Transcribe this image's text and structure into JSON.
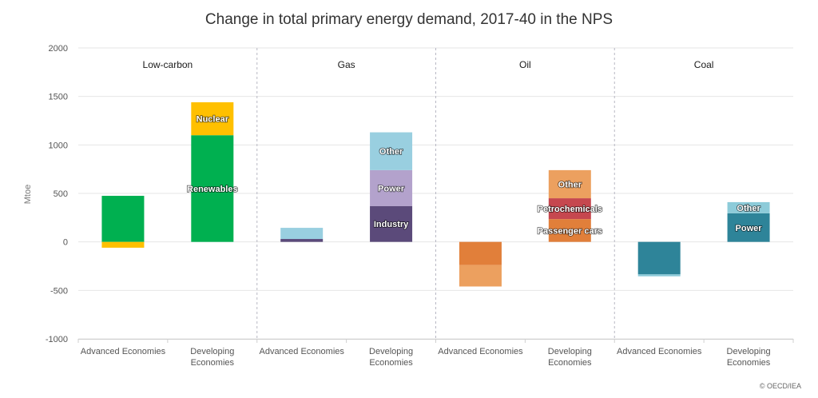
{
  "title": "Change in total primary energy demand, 2017-40 in the NPS",
  "credit": "© OECD/IEA",
  "chart_data": {
    "type": "bar",
    "stacked": true,
    "ylabel": "Mtoe",
    "ylim": [
      -1000,
      2000
    ],
    "yticks": [
      2000,
      1500,
      1000,
      500,
      0,
      -500,
      -1000
    ],
    "ytick_labels": [
      "2000",
      "1500",
      "1000",
      "500",
      "0",
      "-500",
      "-1000"
    ],
    "grid": true,
    "groups": [
      {
        "name": "Low-carbon",
        "bars": [
          {
            "category": "Advanced Economies",
            "segments": [
              {
                "label": "",
                "value": 475,
                "color": "#00b050"
              },
              {
                "label": "",
                "value": -60,
                "color": "#ffc000"
              }
            ]
          },
          {
            "category": "Developing Economies",
            "segments": [
              {
                "label": "Renewables",
                "value": 1100,
                "color": "#00b050"
              },
              {
                "label": "Nuclear",
                "value": 340,
                "color": "#ffc000"
              }
            ]
          }
        ]
      },
      {
        "name": "Gas",
        "bars": [
          {
            "category": "Advanced Economies",
            "segments": [
              {
                "label": "",
                "value": 30,
                "color": "#5b4a7a"
              },
              {
                "label": "",
                "value": 0,
                "color": "#b3a2cc"
              },
              {
                "label": "",
                "value": 115,
                "color": "#99cfe0"
              }
            ]
          },
          {
            "category": "Developing Economies",
            "segments": [
              {
                "label": "Industry",
                "value": 370,
                "color": "#5b4a7a"
              },
              {
                "label": "Power",
                "value": 370,
                "color": "#b3a2cc"
              },
              {
                "label": "Other",
                "value": 390,
                "color": "#99cfe0"
              }
            ]
          }
        ]
      },
      {
        "name": "Oil",
        "bars": [
          {
            "category": "Advanced Economies",
            "segments": [
              {
                "label": "",
                "value": -240,
                "color": "#e17f3a"
              },
              {
                "label": "",
                "value": -220,
                "color": "#eca05f"
              }
            ]
          },
          {
            "category": "Developing Economies",
            "segments": [
              {
                "label": "Passenger cars",
                "value": 235,
                "color": "#e17f3a"
              },
              {
                "label": "Petrochemicals",
                "value": 215,
                "color": "#c6474f"
              },
              {
                "label": "Other",
                "value": 290,
                "color": "#eca05f"
              }
            ]
          }
        ]
      },
      {
        "name": "Coal",
        "bars": [
          {
            "category": "Advanced Economies",
            "segments": [
              {
                "label": "",
                "value": -335,
                "color": "#2e8499"
              },
              {
                "label": "",
                "value": -20,
                "color": "#8dcbd9"
              }
            ]
          },
          {
            "category": "Developing Economies",
            "segments": [
              {
                "label": "Power",
                "value": 295,
                "color": "#2e8499"
              },
              {
                "label": "Other",
                "value": 115,
                "color": "#8dcbd9"
              }
            ]
          }
        ]
      }
    ]
  }
}
